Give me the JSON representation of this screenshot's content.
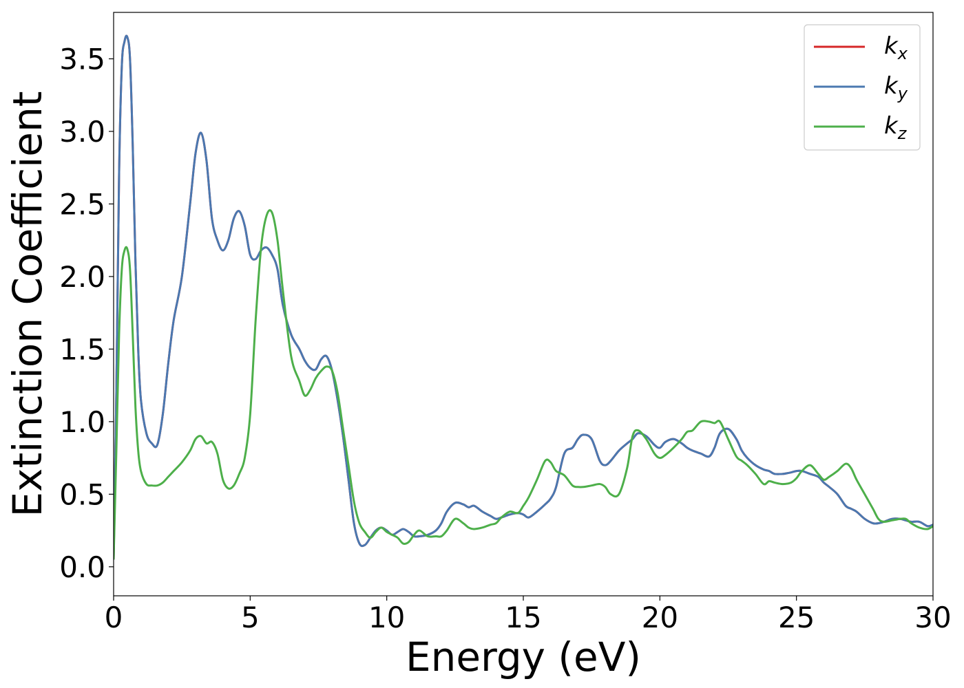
{
  "chart_data": {
    "type": "line",
    "title": "",
    "xlabel": "Energy (eV)",
    "ylabel": "Extinction Coefficient",
    "xlim": [
      0,
      30
    ],
    "ylim": [
      -0.2,
      3.82
    ],
    "xticks": [
      0,
      5,
      10,
      15,
      20,
      25,
      30
    ],
    "xtick_labels": [
      "0",
      "5",
      "10",
      "15",
      "20",
      "25",
      "30"
    ],
    "yticks": [
      0.0,
      0.5,
      1.0,
      1.5,
      2.0,
      2.5,
      3.0,
      3.5
    ],
    "ytick_labels": [
      "0.0",
      "0.5",
      "1.0",
      "1.5",
      "2.0",
      "2.5",
      "3.0",
      "3.5"
    ],
    "grid": false,
    "legend_position": "top-right",
    "series": [
      {
        "name": "k_x",
        "legend_main": "k",
        "legend_sub": "x",
        "color": "#d62728",
        "x": [
          0,
          0.1,
          0.2,
          0.3,
          0.4,
          0.5,
          0.6,
          0.7,
          0.8,
          0.9,
          1.0,
          1.2,
          1.4,
          1.6,
          1.8,
          2.0,
          2.2,
          2.5,
          2.8,
          3.0,
          3.2,
          3.4,
          3.6,
          3.8,
          4.0,
          4.2,
          4.4,
          4.6,
          4.8,
          5.0,
          5.2,
          5.4,
          5.6,
          5.8,
          6.0,
          6.2,
          6.5,
          6.8,
          7.0,
          7.2,
          7.4,
          7.6,
          7.8,
          8.0,
          8.2,
          8.4,
          8.6,
          8.8,
          9.0,
          9.2,
          9.4,
          9.6,
          9.8,
          10.0,
          10.2,
          10.4,
          10.6,
          10.8,
          11.0,
          11.2,
          11.5,
          11.8,
          12.0,
          12.2,
          12.5,
          12.8,
          13.0,
          13.2,
          13.5,
          13.8,
          14.0,
          14.2,
          14.5,
          14.8,
          15.0,
          15.2,
          15.5,
          15.8,
          16.0,
          16.2,
          16.5,
          16.8,
          17.0,
          17.2,
          17.5,
          17.8,
          18.0,
          18.2,
          18.5,
          18.8,
          19.0,
          19.2,
          19.5,
          19.8,
          20.0,
          20.2,
          20.5,
          20.8,
          21.0,
          21.2,
          21.5,
          21.8,
          22.0,
          22.2,
          22.5,
          22.8,
          23.0,
          23.2,
          23.5,
          23.8,
          24.0,
          24.2,
          24.5,
          24.8,
          25.0,
          25.2,
          25.5,
          25.8,
          26.0,
          26.2,
          26.5,
          26.8,
          27.0,
          27.2,
          27.5,
          27.8,
          28.0,
          28.2,
          28.5,
          28.8,
          29.0,
          29.2,
          29.5,
          29.8,
          30.0
        ],
        "y": [
          0.05,
          1.2,
          2.7,
          3.45,
          3.62,
          3.65,
          3.5,
          2.9,
          2.1,
          1.5,
          1.15,
          0.92,
          0.85,
          0.84,
          1.05,
          1.4,
          1.7,
          2.0,
          2.5,
          2.85,
          2.99,
          2.8,
          2.4,
          2.25,
          2.18,
          2.25,
          2.4,
          2.45,
          2.35,
          2.15,
          2.12,
          2.18,
          2.2,
          2.15,
          2.05,
          1.8,
          1.6,
          1.5,
          1.42,
          1.37,
          1.36,
          1.43,
          1.45,
          1.35,
          1.15,
          0.9,
          0.6,
          0.3,
          0.16,
          0.15,
          0.2,
          0.25,
          0.27,
          0.25,
          0.22,
          0.24,
          0.26,
          0.24,
          0.21,
          0.21,
          0.22,
          0.25,
          0.3,
          0.38,
          0.44,
          0.43,
          0.41,
          0.42,
          0.38,
          0.35,
          0.33,
          0.34,
          0.36,
          0.37,
          0.36,
          0.34,
          0.38,
          0.43,
          0.47,
          0.55,
          0.78,
          0.82,
          0.88,
          0.91,
          0.88,
          0.73,
          0.7,
          0.73,
          0.8,
          0.85,
          0.88,
          0.92,
          0.9,
          0.84,
          0.82,
          0.86,
          0.88,
          0.85,
          0.82,
          0.8,
          0.78,
          0.76,
          0.82,
          0.92,
          0.95,
          0.88,
          0.8,
          0.75,
          0.7,
          0.67,
          0.66,
          0.64,
          0.64,
          0.65,
          0.66,
          0.66,
          0.64,
          0.62,
          0.58,
          0.55,
          0.5,
          0.42,
          0.4,
          0.38,
          0.33,
          0.3,
          0.3,
          0.31,
          0.33,
          0.33,
          0.32,
          0.31,
          0.31,
          0.28,
          0.29
        ]
      },
      {
        "name": "k_y",
        "legend_main": "k",
        "legend_sub": "y",
        "color": "#4a78b0",
        "x": [
          0,
          0.1,
          0.2,
          0.3,
          0.4,
          0.5,
          0.6,
          0.7,
          0.8,
          0.9,
          1.0,
          1.2,
          1.4,
          1.6,
          1.8,
          2.0,
          2.2,
          2.5,
          2.8,
          3.0,
          3.2,
          3.4,
          3.6,
          3.8,
          4.0,
          4.2,
          4.4,
          4.6,
          4.8,
          5.0,
          5.2,
          5.4,
          5.6,
          5.8,
          6.0,
          6.2,
          6.5,
          6.8,
          7.0,
          7.2,
          7.4,
          7.6,
          7.8,
          8.0,
          8.2,
          8.4,
          8.6,
          8.8,
          9.0,
          9.2,
          9.4,
          9.6,
          9.8,
          10.0,
          10.2,
          10.4,
          10.6,
          10.8,
          11.0,
          11.2,
          11.5,
          11.8,
          12.0,
          12.2,
          12.5,
          12.8,
          13.0,
          13.2,
          13.5,
          13.8,
          14.0,
          14.2,
          14.5,
          14.8,
          15.0,
          15.2,
          15.5,
          15.8,
          16.0,
          16.2,
          16.5,
          16.8,
          17.0,
          17.2,
          17.5,
          17.8,
          18.0,
          18.2,
          18.5,
          18.8,
          19.0,
          19.2,
          19.5,
          19.8,
          20.0,
          20.2,
          20.5,
          20.8,
          21.0,
          21.2,
          21.5,
          21.8,
          22.0,
          22.2,
          22.5,
          22.8,
          23.0,
          23.2,
          23.5,
          23.8,
          24.0,
          24.2,
          24.5,
          24.8,
          25.0,
          25.2,
          25.5,
          25.8,
          26.0,
          26.2,
          26.5,
          26.8,
          27.0,
          27.2,
          27.5,
          27.8,
          28.0,
          28.2,
          28.5,
          28.8,
          29.0,
          29.2,
          29.5,
          29.8,
          30.0
        ],
        "y": [
          0.05,
          1.2,
          2.7,
          3.45,
          3.62,
          3.65,
          3.5,
          2.9,
          2.1,
          1.5,
          1.15,
          0.92,
          0.85,
          0.84,
          1.05,
          1.4,
          1.7,
          2.0,
          2.5,
          2.85,
          2.99,
          2.8,
          2.4,
          2.25,
          2.18,
          2.25,
          2.4,
          2.45,
          2.35,
          2.15,
          2.12,
          2.18,
          2.2,
          2.15,
          2.05,
          1.8,
          1.6,
          1.5,
          1.42,
          1.37,
          1.36,
          1.43,
          1.45,
          1.35,
          1.15,
          0.9,
          0.6,
          0.3,
          0.16,
          0.15,
          0.2,
          0.25,
          0.27,
          0.25,
          0.22,
          0.24,
          0.26,
          0.24,
          0.21,
          0.21,
          0.22,
          0.25,
          0.3,
          0.38,
          0.44,
          0.43,
          0.41,
          0.42,
          0.38,
          0.35,
          0.33,
          0.34,
          0.36,
          0.37,
          0.36,
          0.34,
          0.38,
          0.43,
          0.47,
          0.55,
          0.78,
          0.82,
          0.88,
          0.91,
          0.88,
          0.73,
          0.7,
          0.73,
          0.8,
          0.85,
          0.88,
          0.92,
          0.9,
          0.84,
          0.82,
          0.86,
          0.88,
          0.85,
          0.82,
          0.8,
          0.78,
          0.76,
          0.82,
          0.92,
          0.95,
          0.88,
          0.8,
          0.75,
          0.7,
          0.67,
          0.66,
          0.64,
          0.64,
          0.65,
          0.66,
          0.66,
          0.64,
          0.62,
          0.58,
          0.55,
          0.5,
          0.42,
          0.4,
          0.38,
          0.33,
          0.3,
          0.3,
          0.31,
          0.33,
          0.33,
          0.32,
          0.31,
          0.31,
          0.28,
          0.29
        ]
      },
      {
        "name": "k_z",
        "legend_main": "k",
        "legend_sub": "z",
        "color": "#4daf4a",
        "x": [
          0,
          0.1,
          0.2,
          0.3,
          0.4,
          0.5,
          0.6,
          0.7,
          0.8,
          0.9,
          1.0,
          1.2,
          1.4,
          1.6,
          1.8,
          2.0,
          2.2,
          2.5,
          2.8,
          3.0,
          3.2,
          3.4,
          3.6,
          3.8,
          4.0,
          4.2,
          4.4,
          4.6,
          4.8,
          5.0,
          5.2,
          5.4,
          5.6,
          5.8,
          6.0,
          6.2,
          6.5,
          6.8,
          7.0,
          7.2,
          7.4,
          7.6,
          7.8,
          8.0,
          8.2,
          8.4,
          8.6,
          8.8,
          9.0,
          9.2,
          9.4,
          9.6,
          9.8,
          10.0,
          10.2,
          10.4,
          10.6,
          10.8,
          11.0,
          11.2,
          11.5,
          11.8,
          12.0,
          12.2,
          12.5,
          12.8,
          13.0,
          13.2,
          13.5,
          13.8,
          14.0,
          14.2,
          14.5,
          14.8,
          15.0,
          15.2,
          15.5,
          15.8,
          16.0,
          16.2,
          16.5,
          16.8,
          17.0,
          17.2,
          17.5,
          17.8,
          18.0,
          18.2,
          18.5,
          18.8,
          19.0,
          19.2,
          19.5,
          19.8,
          20.0,
          20.2,
          20.5,
          20.8,
          21.0,
          21.2,
          21.5,
          21.8,
          22.0,
          22.2,
          22.5,
          22.8,
          23.0,
          23.2,
          23.5,
          23.8,
          24.0,
          24.2,
          24.5,
          24.8,
          25.0,
          25.2,
          25.5,
          25.8,
          26.0,
          26.2,
          26.5,
          26.8,
          27.0,
          27.2,
          27.5,
          27.8,
          28.0,
          28.2,
          28.5,
          28.8,
          29.0,
          29.2,
          29.5,
          29.8,
          30.0
        ],
        "y": [
          0.05,
          0.8,
          1.6,
          2.05,
          2.18,
          2.19,
          2.05,
          1.6,
          1.1,
          0.8,
          0.66,
          0.57,
          0.56,
          0.56,
          0.58,
          0.62,
          0.66,
          0.72,
          0.8,
          0.88,
          0.9,
          0.85,
          0.86,
          0.78,
          0.6,
          0.54,
          0.56,
          0.64,
          0.75,
          1.05,
          1.7,
          2.2,
          2.42,
          2.44,
          2.25,
          1.9,
          1.45,
          1.28,
          1.18,
          1.22,
          1.3,
          1.35,
          1.38,
          1.35,
          1.2,
          0.95,
          0.7,
          0.45,
          0.3,
          0.24,
          0.2,
          0.24,
          0.27,
          0.24,
          0.22,
          0.2,
          0.16,
          0.17,
          0.22,
          0.25,
          0.21,
          0.21,
          0.21,
          0.25,
          0.33,
          0.3,
          0.27,
          0.26,
          0.27,
          0.29,
          0.3,
          0.34,
          0.38,
          0.37,
          0.42,
          0.48,
          0.6,
          0.73,
          0.72,
          0.66,
          0.63,
          0.56,
          0.55,
          0.55,
          0.56,
          0.57,
          0.55,
          0.5,
          0.5,
          0.68,
          0.9,
          0.94,
          0.88,
          0.78,
          0.75,
          0.77,
          0.82,
          0.88,
          0.93,
          0.94,
          1.0,
          1.0,
          0.99,
          1.0,
          0.88,
          0.76,
          0.73,
          0.7,
          0.64,
          0.57,
          0.59,
          0.58,
          0.57,
          0.58,
          0.61,
          0.66,
          0.7,
          0.64,
          0.6,
          0.62,
          0.66,
          0.71,
          0.68,
          0.6,
          0.5,
          0.4,
          0.33,
          0.31,
          0.32,
          0.33,
          0.33,
          0.3,
          0.27,
          0.26,
          0.28
        ]
      }
    ]
  }
}
